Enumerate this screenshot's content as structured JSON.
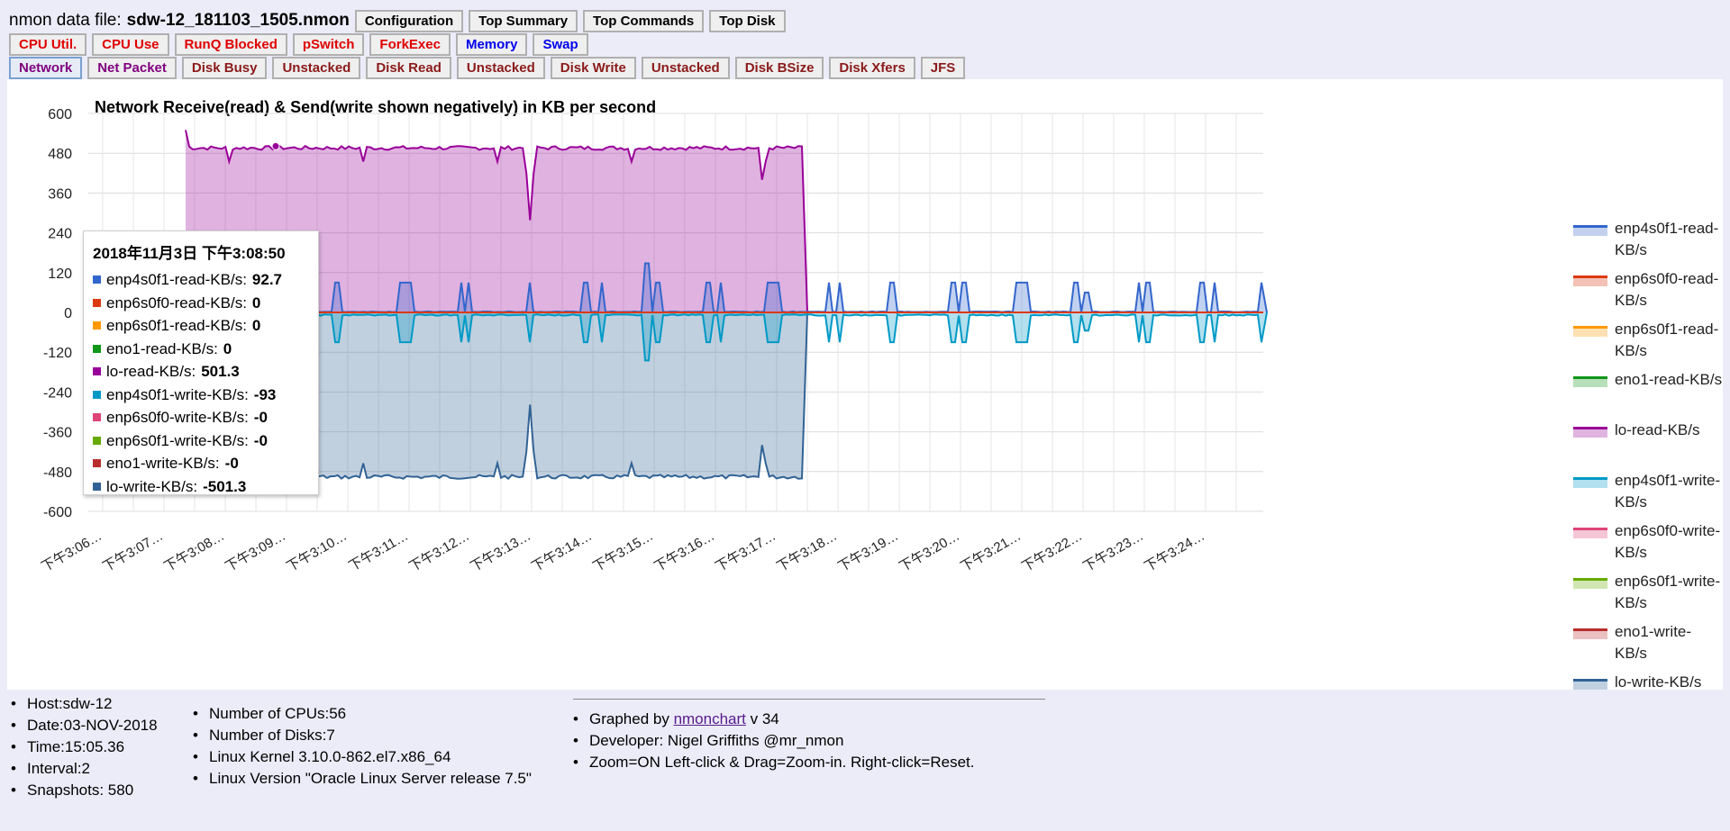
{
  "header": {
    "file_label": "nmon data file:",
    "file_name": "sdw-12_181103_1505.nmon",
    "top_buttons": [
      "Configuration",
      "Top Summary",
      "Top Commands",
      "Top Disk"
    ]
  },
  "nav_row2": [
    "CPU Util.",
    "CPU Use",
    "RunQ Blocked",
    "pSwitch",
    "ForkExec",
    "Memory",
    "Swap"
  ],
  "nav_row3": [
    "Network",
    "Net Packet",
    "Disk Busy",
    "Unstacked",
    "Disk Read",
    "Unstacked",
    "Disk Write",
    "Unstacked",
    "Disk BSize",
    "Disk Xfers",
    "JFS"
  ],
  "tooltip": {
    "title": "2018年11月3日 下午3:08:50",
    "rows": [
      {
        "label": "enp4s0f1-read-KB/s:",
        "value": "92.7",
        "color": "#3366cc"
      },
      {
        "label": "enp6s0f0-read-KB/s:",
        "value": "0",
        "color": "#dc3912"
      },
      {
        "label": "enp6s0f1-read-KB/s:",
        "value": "0",
        "color": "#ff9900"
      },
      {
        "label": "eno1-read-KB/s:",
        "value": "0",
        "color": "#109618"
      },
      {
        "label": "lo-read-KB/s:",
        "value": "501.3",
        "color": "#990099"
      },
      {
        "label": "enp4s0f1-write-KB/s:",
        "value": "-93",
        "color": "#0099c6"
      },
      {
        "label": "enp6s0f0-write-KB/s:",
        "value": "-0",
        "color": "#dd4477"
      },
      {
        "label": "enp6s0f1-write-KB/s:",
        "value": "-0",
        "color": "#66aa00"
      },
      {
        "label": "eno1-write-KB/s:",
        "value": "-0",
        "color": "#b82e2e"
      },
      {
        "label": "lo-write-KB/s:",
        "value": "-501.3",
        "color": "#316395"
      }
    ]
  },
  "legend": [
    {
      "label": "enp4s0f1-read-KB/s",
      "color": "#3366cc"
    },
    {
      "label": "enp6s0f0-read-KB/s",
      "color": "#dc3912"
    },
    {
      "label": "enp6s0f1-read-KB/s",
      "color": "#ff9900"
    },
    {
      "label": "eno1-read-KB/s",
      "color": "#109618"
    },
    {
      "label": "lo-read-KB/s",
      "color": "#990099"
    },
    {
      "label": "enp4s0f1-write-KB/s",
      "color": "#0099c6"
    },
    {
      "label": "enp6s0f0-write-KB/s",
      "color": "#dd4477"
    },
    {
      "label": "enp6s0f1-write-KB/s",
      "color": "#66aa00"
    },
    {
      "label": "eno1-write-KB/s",
      "color": "#b82e2e"
    },
    {
      "label": "lo-write-KB/s",
      "color": "#316395"
    }
  ],
  "chart_data": {
    "type": "area",
    "title": "Network Receive(read) & Send(write shown negatively) in KB per second",
    "ylim": [
      -600,
      600
    ],
    "yticks": [
      "600",
      "480",
      "360",
      "240",
      "120",
      "0",
      "-120",
      "-240",
      "-360",
      "-480",
      "-600"
    ],
    "x_tick_labels": [
      "下午3:06…",
      "下午3:07…",
      "下午3:08…",
      "下午3:09…",
      "下午3:10…",
      "下午3:11…",
      "下午3:12…",
      "下午3:13…",
      "下午3:14…",
      "下午3:15…",
      "下午3:16…",
      "下午3:17…",
      "下午3:18…",
      "下午3:19…",
      "下午3:20…",
      "下午3:21…",
      "下午3:22…",
      "下午3:23…",
      "下午3:24…"
    ],
    "grid": true,
    "legend_position": "right",
    "series_summary": [
      {
        "name": "lo-read-KB/s",
        "typical": 495,
        "peak": 550,
        "dip": 275,
        "active_from": "下午3:07",
        "active_to": "下午3:17"
      },
      {
        "name": "lo-write-KB/s",
        "typical": -495,
        "peak": -550,
        "dip": -275,
        "active_from": "下午3:07",
        "active_to": "下午3:17"
      },
      {
        "name": "enp4s0f1-read-KB/s",
        "typical": 2,
        "spikes": 90,
        "max_spike": 150
      },
      {
        "name": "enp4s0f1-write-KB/s",
        "typical": -5,
        "spikes": -90,
        "max_spike": -150
      },
      {
        "name": "enp6s0f0-read-KB/s",
        "typical": 0
      },
      {
        "name": "enp6s0f1-read-KB/s",
        "typical": 0
      },
      {
        "name": "eno1-read-KB/s",
        "typical": 0
      },
      {
        "name": "enp6s0f0-write-KB/s",
        "typical": 0
      },
      {
        "name": "enp6s0f1-write-KB/s",
        "typical": 0
      },
      {
        "name": "eno1-write-KB/s",
        "typical": 0
      }
    ]
  },
  "footer": {
    "col1": [
      "Host:sdw-12",
      "Date:03-NOV-2018",
      "Time:15:05.36",
      "Interval:2",
      "Snapshots: 580"
    ],
    "col2": [
      "Number of CPUs:56",
      "Number of Disks:7",
      "Linux Kernel 3.10.0-862.el7.x86_64",
      "Linux Version \"Oracle Linux Server release 7.5\""
    ],
    "graphed_prefix": "Graphed by ",
    "graphed_link": "nmonchart",
    "graphed_suffix": " v 34",
    "developer": "Developer: Nigel Griffiths @mr_nmon",
    "zoom": "Zoom=ON Left-click & Drag=Zoom-in. Right-click=Reset."
  }
}
